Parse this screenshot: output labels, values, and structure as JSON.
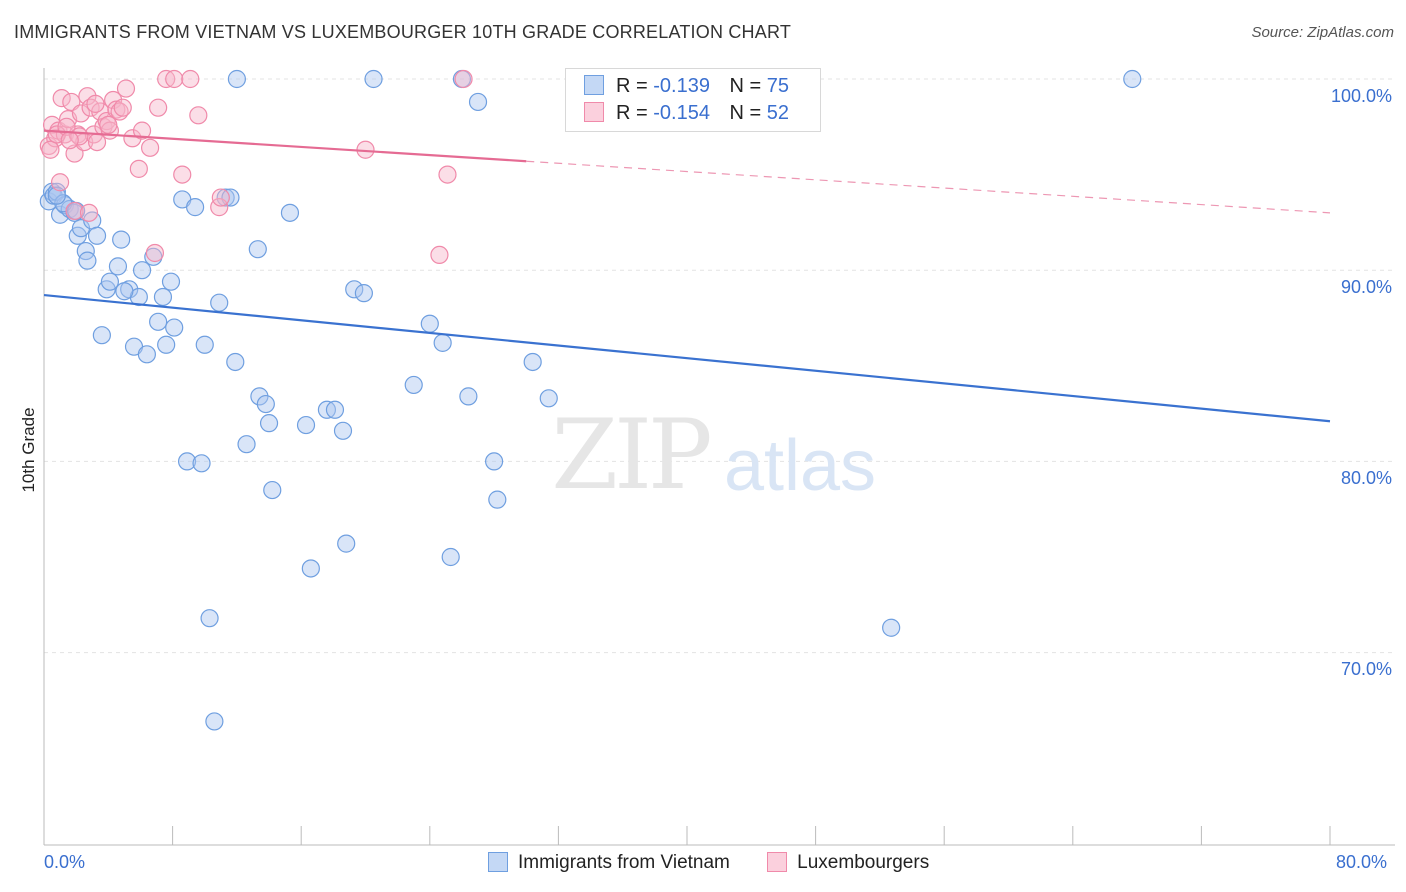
{
  "title": "IMMIGRANTS FROM VIETNAM VS LUXEMBOURGER 10TH GRADE CORRELATION CHART",
  "source": "Source: ZipAtlas.com",
  "watermark": {
    "zip": "ZIP",
    "atlas": "atlas"
  },
  "legend": {
    "rows": [
      {
        "r_label": "R =",
        "r_value": "-0.139",
        "n_label": "N =",
        "n_value": "75",
        "color": "#6f9fe0"
      },
      {
        "r_label": "R =",
        "r_value": "-0.154",
        "n_label": "N =",
        "n_value": "52",
        "color": "#f08aaa"
      }
    ]
  },
  "bottom_legend": [
    "Immigrants from Vietnam",
    "Luxembourgers"
  ],
  "colors": {
    "blue": "#3a72d0",
    "blue_fill": "#aac6ef",
    "pink": "#e56b93",
    "pink_fill": "#f6b5c9",
    "grid": "#e3e3e3",
    "tick_text": "#3a6fcf"
  },
  "chart_data": {
    "type": "scatter",
    "title": "IMMIGRANTS FROM VIETNAM VS LUXEMBOURGER 10TH GRADE CORRELATION CHART",
    "xlabel": "",
    "ylabel": "10th Grade",
    "xlim": [
      0,
      80
    ],
    "ylim": [
      60,
      104
    ],
    "x_tick_labels": [
      "0.0%",
      "80.0%"
    ],
    "y_tick_labels": [
      "100.0%",
      "90.0%",
      "80.0%",
      "70.0%"
    ],
    "y_ticks": [
      100,
      90,
      80,
      70
    ],
    "grid": true,
    "series": [
      {
        "name": "Immigrants from Vietnam",
        "color": "#3a72d0",
        "trend": {
          "x": [
            0,
            80
          ],
          "y": [
            88.7,
            82.1
          ]
        },
        "points": [
          [
            0.3,
            93.6
          ],
          [
            0.5,
            94.1
          ],
          [
            0.6,
            93.9
          ],
          [
            0.8,
            94.1
          ],
          [
            1.0,
            92.9
          ],
          [
            1.3,
            93.4
          ],
          [
            1.6,
            93.2
          ],
          [
            1.9,
            93.0
          ],
          [
            2.1,
            91.8
          ],
          [
            2.3,
            92.2
          ],
          [
            2.6,
            91.0
          ],
          [
            2.7,
            90.5
          ],
          [
            3.0,
            92.6
          ],
          [
            3.3,
            91.8
          ],
          [
            3.6,
            86.6
          ],
          [
            3.9,
            89.0
          ],
          [
            4.1,
            89.4
          ],
          [
            4.6,
            90.2
          ],
          [
            4.8,
            91.6
          ],
          [
            5.3,
            89.0
          ],
          [
            5.6,
            86.0
          ],
          [
            5.9,
            88.6
          ],
          [
            6.1,
            90.0
          ],
          [
            6.4,
            85.6
          ],
          [
            6.8,
            90.7
          ],
          [
            7.1,
            87.3
          ],
          [
            7.4,
            88.6
          ],
          [
            7.6,
            86.1
          ],
          [
            7.9,
            89.4
          ],
          [
            8.1,
            87.0
          ],
          [
            8.6,
            93.7
          ],
          [
            8.9,
            80.0
          ],
          [
            9.4,
            93.3
          ],
          [
            9.8,
            79.9
          ],
          [
            10.0,
            86.1
          ],
          [
            10.3,
            71.8
          ],
          [
            10.6,
            66.4
          ],
          [
            10.9,
            88.3
          ],
          [
            11.3,
            93.8
          ],
          [
            11.6,
            93.8
          ],
          [
            11.9,
            85.2
          ],
          [
            12.6,
            80.9
          ],
          [
            13.3,
            91.1
          ],
          [
            13.4,
            83.4
          ],
          [
            13.8,
            83.0
          ],
          [
            14.0,
            82.0
          ],
          [
            14.2,
            78.5
          ],
          [
            15.3,
            93.0
          ],
          [
            16.3,
            81.9
          ],
          [
            16.6,
            74.4
          ],
          [
            17.6,
            82.7
          ],
          [
            18.1,
            82.7
          ],
          [
            18.6,
            81.6
          ],
          [
            18.8,
            75.7
          ],
          [
            19.3,
            89.0
          ],
          [
            19.9,
            88.8
          ],
          [
            12.0,
            100.0
          ],
          [
            20.5,
            100.0
          ],
          [
            26.0,
            100.0
          ],
          [
            23.0,
            84.0
          ],
          [
            24.0,
            87.2
          ],
          [
            24.8,
            86.2
          ],
          [
            25.3,
            75.0
          ],
          [
            26.4,
            83.4
          ],
          [
            27.0,
            98.8
          ],
          [
            28.0,
            80.0
          ],
          [
            28.2,
            78.0
          ],
          [
            30.4,
            85.2
          ],
          [
            31.4,
            83.3
          ],
          [
            52.7,
            71.3
          ],
          [
            67.7,
            100.0
          ],
          [
            1.2,
            93.5
          ],
          [
            0.8,
            93.9
          ],
          [
            2.0,
            93.1
          ],
          [
            5.0,
            88.9
          ]
        ]
      },
      {
        "name": "Luxembourgers",
        "color": "#e56b93",
        "trend": {
          "x": [
            0,
            30
          ],
          "y": [
            97.3,
            95.7
          ]
        },
        "trend_dashed": {
          "x": [
            30,
            80
          ],
          "y": [
            95.7,
            93.0
          ]
        },
        "points": [
          [
            0.3,
            96.5
          ],
          [
            0.5,
            97.6
          ],
          [
            0.7,
            96.9
          ],
          [
            0.9,
            97.3
          ],
          [
            1.1,
            99.0
          ],
          [
            1.3,
            97.1
          ],
          [
            1.5,
            97.9
          ],
          [
            1.7,
            98.8
          ],
          [
            1.9,
            96.1
          ],
          [
            2.1,
            97.1
          ],
          [
            2.3,
            98.2
          ],
          [
            2.5,
            96.7
          ],
          [
            2.7,
            99.1
          ],
          [
            2.9,
            98.5
          ],
          [
            3.1,
            97.1
          ],
          [
            3.3,
            96.7
          ],
          [
            3.5,
            98.3
          ],
          [
            3.7,
            97.5
          ],
          [
            3.9,
            97.8
          ],
          [
            4.1,
            97.3
          ],
          [
            4.3,
            98.9
          ],
          [
            4.5,
            98.4
          ],
          [
            4.7,
            98.3
          ],
          [
            5.1,
            99.5
          ],
          [
            5.5,
            96.9
          ],
          [
            5.9,
            95.3
          ],
          [
            6.1,
            97.3
          ],
          [
            6.6,
            96.4
          ],
          [
            7.1,
            98.5
          ],
          [
            7.6,
            100.0
          ],
          [
            8.1,
            100.0
          ],
          [
            8.6,
            95.0
          ],
          [
            9.1,
            100.0
          ],
          [
            9.6,
            98.1
          ],
          [
            10.9,
            93.3
          ],
          [
            11.0,
            93.8
          ],
          [
            6.9,
            90.9
          ],
          [
            20.0,
            96.3
          ],
          [
            24.6,
            90.8
          ],
          [
            25.1,
            95.0
          ],
          [
            26.1,
            100.0
          ],
          [
            0.4,
            96.3
          ],
          [
            0.8,
            97.1
          ],
          [
            1.0,
            94.6
          ],
          [
            1.4,
            97.5
          ],
          [
            1.9,
            93.1
          ],
          [
            2.8,
            93.0
          ],
          [
            4.9,
            98.5
          ],
          [
            3.2,
            98.7
          ],
          [
            2.2,
            97.0
          ],
          [
            1.6,
            96.8
          ],
          [
            4.0,
            97.6
          ]
        ]
      }
    ]
  }
}
